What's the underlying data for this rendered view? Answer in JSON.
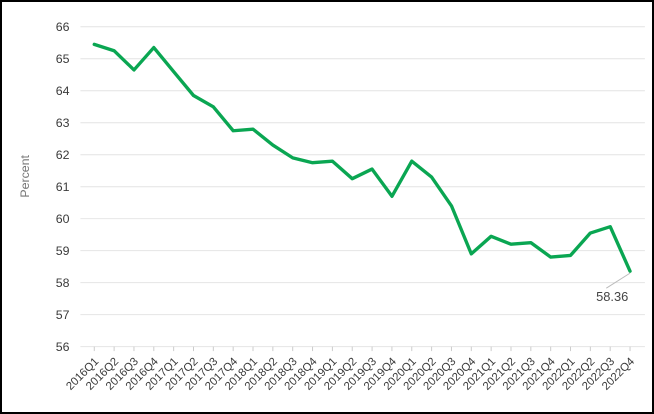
{
  "chart_data": {
    "type": "line",
    "title": "",
    "xlabel": "",
    "ylabel": "Percent",
    "categories": [
      "2016Q1",
      "2016Q2",
      "2016Q3",
      "2016Q4",
      "2017Q1",
      "2017Q2",
      "2017Q3",
      "2017Q4",
      "2018Q1",
      "2018Q2",
      "2018Q3",
      "2018Q4",
      "2019Q1",
      "2019Q2",
      "2019Q3",
      "2019Q4",
      "2020Q1",
      "2020Q2",
      "2020Q3",
      "2020Q4",
      "2021Q1",
      "2021Q2",
      "2021Q3",
      "2021Q4",
      "2022Q1",
      "2022Q2",
      "2022Q3",
      "2022Q4"
    ],
    "values": [
      65.45,
      65.25,
      64.65,
      65.35,
      64.6,
      63.85,
      63.5,
      62.75,
      62.8,
      62.3,
      61.9,
      61.75,
      61.8,
      61.25,
      61.55,
      60.7,
      61.8,
      61.3,
      60.4,
      58.9,
      59.45,
      59.2,
      59.25,
      58.8,
      58.85,
      59.55,
      59.75,
      58.36
    ],
    "ylim": [
      56,
      66
    ],
    "y_ticks": [
      66,
      65,
      64,
      63,
      62,
      61,
      60,
      59,
      58,
      57,
      56
    ],
    "grid": true,
    "legend": "none",
    "last_point_label": "58.36",
    "colors": {
      "line": "#0aa652",
      "grid": "#e4e4e4",
      "tick_mark": "#cccccc",
      "tick_label": "#3b3b3b",
      "axis_title": "#757575",
      "annotation_text": "#444444",
      "leader_line": "#bbbbbb",
      "background": "#ffffff",
      "border": "#000000"
    }
  }
}
